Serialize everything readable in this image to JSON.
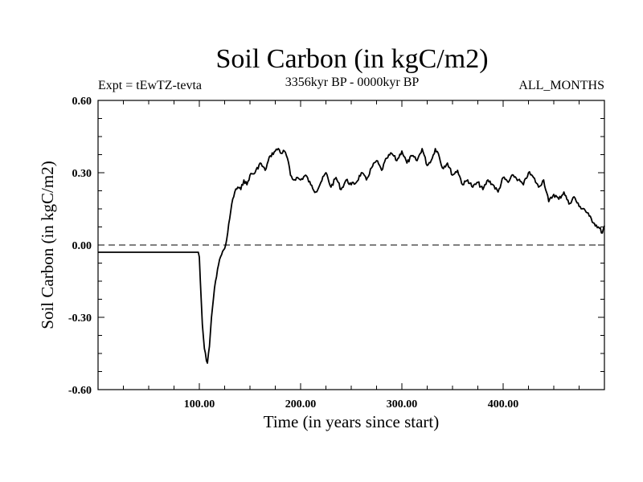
{
  "chart_data": {
    "type": "line",
    "title": "Soil Carbon (in kgC/m2)",
    "subtitle": "3356kyr BP - 0000kyr BP",
    "experiment": "Expt = tEwTZ-tevta",
    "period": "ALL_MONTHS",
    "xlabel": "Time (in years since start)",
    "ylabel": "Soil Carbon (in kgC/m2)",
    "xlim": [
      0,
      500
    ],
    "ylim": [
      -0.6,
      0.6
    ],
    "x_ticks": [
      {
        "value": 100,
        "label": "100.00"
      },
      {
        "value": 200,
        "label": "200.00"
      },
      {
        "value": 300,
        "label": "300.00"
      },
      {
        "value": 400,
        "label": "400.00"
      }
    ],
    "y_ticks": [
      {
        "value": 0.6,
        "label": "0.60"
      },
      {
        "value": 0.3,
        "label": "0.30"
      },
      {
        "value": 0.0,
        "label": "0.00"
      },
      {
        "value": -0.3,
        "label": "-0.30"
      },
      {
        "value": -0.6,
        "label": "-0.60"
      }
    ],
    "reference_line": {
      "y": 0.0,
      "style": "dashed"
    },
    "series": [
      {
        "name": "Soil Carbon",
        "x": [
          0,
          99,
          100,
          101,
          103,
          105,
          107,
          108,
          110,
          112,
          114,
          116,
          118,
          120,
          122,
          124,
          126,
          128,
          130,
          132,
          135,
          138,
          141,
          144,
          147,
          150,
          155,
          160,
          165,
          170,
          175,
          178,
          181,
          184,
          187,
          190,
          193,
          196,
          200,
          205,
          210,
          215,
          220,
          225,
          230,
          235,
          240,
          245,
          250,
          255,
          260,
          265,
          270,
          275,
          280,
          285,
          290,
          295,
          300,
          305,
          310,
          315,
          320,
          325,
          330,
          333,
          336,
          340,
          345,
          350,
          355,
          360,
          365,
          370,
          375,
          380,
          385,
          390,
          395,
          400,
          405,
          410,
          415,
          420,
          425,
          430,
          435,
          440,
          445,
          450,
          455,
          460,
          465,
          470,
          475,
          480,
          485,
          490,
          495,
          498,
          500
        ],
        "values": [
          -0.03,
          -0.03,
          -0.05,
          -0.15,
          -0.33,
          -0.43,
          -0.48,
          -0.49,
          -0.42,
          -0.3,
          -0.22,
          -0.15,
          -0.1,
          -0.06,
          -0.04,
          -0.02,
          0.0,
          0.05,
          0.11,
          0.17,
          0.22,
          0.24,
          0.23,
          0.27,
          0.25,
          0.29,
          0.3,
          0.34,
          0.31,
          0.37,
          0.39,
          0.4,
          0.38,
          0.39,
          0.36,
          0.29,
          0.27,
          0.28,
          0.27,
          0.29,
          0.25,
          0.22,
          0.26,
          0.3,
          0.24,
          0.28,
          0.23,
          0.27,
          0.25,
          0.26,
          0.3,
          0.27,
          0.32,
          0.35,
          0.31,
          0.36,
          0.38,
          0.35,
          0.39,
          0.34,
          0.37,
          0.35,
          0.4,
          0.33,
          0.36,
          0.4,
          0.38,
          0.32,
          0.34,
          0.29,
          0.31,
          0.25,
          0.27,
          0.24,
          0.26,
          0.23,
          0.27,
          0.25,
          0.22,
          0.28,
          0.26,
          0.29,
          0.27,
          0.25,
          0.3,
          0.28,
          0.24,
          0.27,
          0.18,
          0.21,
          0.19,
          0.22,
          0.17,
          0.2,
          0.16,
          0.15,
          0.12,
          0.09,
          0.07,
          0.05,
          0.08
        ]
      }
    ]
  }
}
